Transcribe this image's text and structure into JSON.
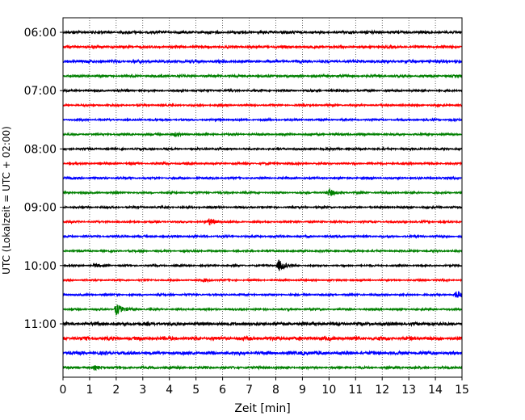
{
  "chart_data": {
    "type": "line",
    "description_kind": "helicorder seismogram traces",
    "xlabel": "Zeit  [min]",
    "ylabel": "UTC (Lokalzeit = UTC + 02:00)",
    "xlim": [
      0,
      15
    ],
    "x_ticks": [
      0,
      1,
      2,
      3,
      4,
      5,
      6,
      7,
      8,
      9,
      10,
      11,
      12,
      13,
      14,
      15
    ],
    "x_tick_labels": [
      "0",
      "1",
      "2",
      "3",
      "4",
      "5",
      "6",
      "7",
      "8",
      "9",
      "10",
      "11",
      "12",
      "13",
      "14",
      "15"
    ],
    "x_grid": "dotted",
    "y_tick_labels": [
      "06:00",
      "07:00",
      "08:00",
      "09:00",
      "10:00",
      "11:00"
    ],
    "trace_interval_minutes": 15,
    "color_cycle": [
      "#000000",
      "#ff0000",
      "#0000ff",
      "#008000"
    ],
    "traces": [
      {
        "start": "06:00",
        "color": "#000000",
        "amplitude": 0.3,
        "events": []
      },
      {
        "start": "06:15",
        "color": "#ff0000",
        "amplitude": 0.28,
        "events": []
      },
      {
        "start": "06:30",
        "color": "#0000ff",
        "amplitude": 0.3,
        "events": []
      },
      {
        "start": "06:45",
        "color": "#008000",
        "amplitude": 0.25,
        "events": []
      },
      {
        "start": "07:00",
        "color": "#000000",
        "amplitude": 0.22,
        "events": []
      },
      {
        "start": "07:15",
        "color": "#ff0000",
        "amplitude": 0.2,
        "events": []
      },
      {
        "start": "07:30",
        "color": "#0000ff",
        "amplitude": 0.2,
        "events": []
      },
      {
        "start": "07:45",
        "color": "#008000",
        "amplitude": 0.22,
        "events": [
          {
            "t": 4.2,
            "amp": 0.4
          }
        ]
      },
      {
        "start": "08:00",
        "color": "#000000",
        "amplitude": 0.22,
        "events": []
      },
      {
        "start": "08:15",
        "color": "#ff0000",
        "amplitude": 0.22,
        "events": []
      },
      {
        "start": "08:30",
        "color": "#0000ff",
        "amplitude": 0.22,
        "events": []
      },
      {
        "start": "08:45",
        "color": "#008000",
        "amplitude": 0.2,
        "events": [
          {
            "t": 10.0,
            "amp": 1.0
          }
        ]
      },
      {
        "start": "09:00",
        "color": "#000000",
        "amplitude": 0.2,
        "events": []
      },
      {
        "start": "09:15",
        "color": "#ff0000",
        "amplitude": 0.2,
        "events": [
          {
            "t": 5.5,
            "amp": 1.0
          }
        ]
      },
      {
        "start": "09:30",
        "color": "#0000ff",
        "amplitude": 0.22,
        "events": []
      },
      {
        "start": "09:45",
        "color": "#008000",
        "amplitude": 0.2,
        "events": []
      },
      {
        "start": "10:00",
        "color": "#000000",
        "amplitude": 0.18,
        "events": [
          {
            "t": 1.2,
            "amp": 0.4
          },
          {
            "t": 8.1,
            "amp": 1.8
          }
        ]
      },
      {
        "start": "10:15",
        "color": "#ff0000",
        "amplitude": 0.18,
        "events": [
          {
            "t": 5.3,
            "amp": 0.5
          }
        ]
      },
      {
        "start": "10:30",
        "color": "#0000ff",
        "amplitude": 0.2,
        "events": [
          {
            "t": 14.8,
            "amp": 1.2
          }
        ]
      },
      {
        "start": "10:45",
        "color": "#008000",
        "amplitude": 0.2,
        "events": [
          {
            "t": 2.0,
            "amp": 1.8
          }
        ]
      },
      {
        "start": "11:00",
        "color": "#000000",
        "amplitude": 0.35,
        "events": []
      },
      {
        "start": "11:15",
        "color": "#ff0000",
        "amplitude": 0.4,
        "events": []
      },
      {
        "start": "11:30",
        "color": "#0000ff",
        "amplitude": 0.35,
        "events": [
          {
            "t": 9.0,
            "amp": 0.4
          }
        ]
      },
      {
        "start": "11:45",
        "color": "#008000",
        "amplitude": 0.25,
        "events": [
          {
            "t": 1.2,
            "amp": 0.4
          }
        ]
      }
    ]
  }
}
